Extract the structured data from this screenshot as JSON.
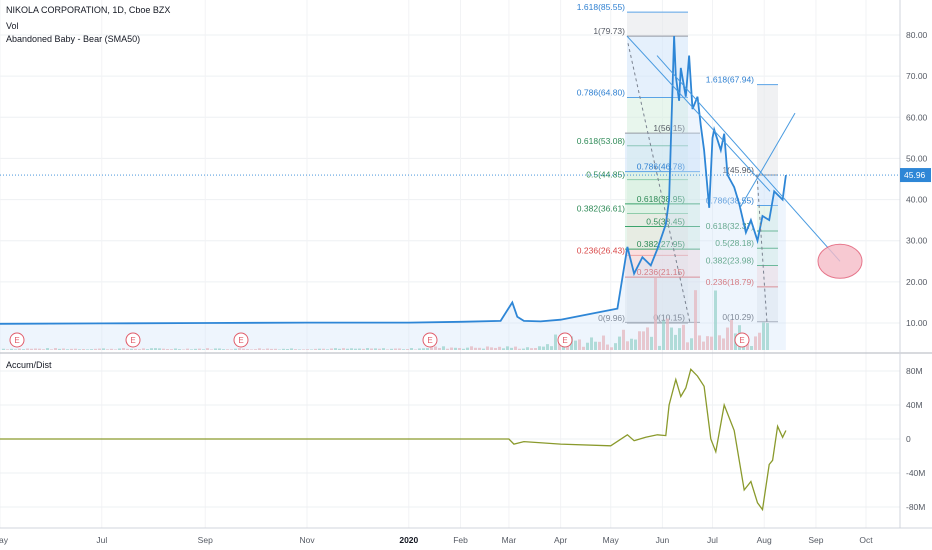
{
  "legend": {
    "symbol": "NIKOLA CORPORATION, 1D, Cboe BZX",
    "vol": "Vol",
    "pattern": "Abandoned Baby - Bear (SMA50)",
    "indicator": "Accum/Dist"
  },
  "colors": {
    "price_line": "#2e86d6",
    "accum_line": "#8a9a2c",
    "fib_blue": "#cfe3fa",
    "fib_green": "#d6efdf",
    "fib_red": "#fad7d7",
    "vol_up": "#7fc9b4",
    "vol_down": "#f0a2a2",
    "earnings": "#e05c6a",
    "last_price_bg": "#2e86d6"
  },
  "chart_data": [
    {
      "type": "line",
      "panel": "price",
      "last_price": "45.96",
      "y_ticks": [
        "10.00",
        "20.00",
        "30.00",
        "40.00",
        "50.00",
        "60.00",
        "70.00",
        "80.00"
      ],
      "ylim": [
        5,
        90
      ],
      "x_labels": [
        "May",
        "Jul",
        "Sep",
        "Nov",
        "2020",
        "Feb",
        "Mar",
        "Apr",
        "May",
        "Jun",
        "Jul",
        "Aug",
        "Sep",
        "Oct"
      ],
      "series": [
        {
          "x": [
            "2019-05-01",
            "2019-07-01",
            "2019-09-01",
            "2019-11-01",
            "2020-01-01",
            "2020-02-01",
            "2020-02-25",
            "2020-03-03",
            "2020-03-06",
            "2020-03-10",
            "2020-03-20",
            "2020-04-01",
            "2020-04-20",
            "2020-05-05",
            "2020-05-11",
            "2020-05-15",
            "2020-05-20",
            "2020-05-25",
            "2020-05-29",
            "2020-06-03",
            "2020-06-05",
            "2020-06-08",
            "2020-06-09",
            "2020-06-11",
            "2020-06-12",
            "2020-06-15",
            "2020-06-17",
            "2020-06-19",
            "2020-06-22",
            "2020-06-24",
            "2020-06-26",
            "2020-06-29",
            "2020-07-01",
            "2020-07-02",
            "2020-07-06",
            "2020-07-08",
            "2020-07-10",
            "2020-07-14",
            "2020-07-17",
            "2020-07-21",
            "2020-07-24",
            "2020-07-28",
            "2020-07-31",
            "2020-08-04",
            "2020-08-07",
            "2020-08-12",
            "2020-08-14"
          ],
          "values": [
            9.8,
            9.9,
            10.0,
            10.1,
            10.1,
            10.3,
            10.5,
            15.0,
            11.5,
            10.5,
            10.4,
            10.8,
            12.3,
            13.5,
            28.5,
            22.0,
            26.0,
            24.0,
            28.0,
            34.0,
            40.0,
            79.73,
            70.0,
            64.0,
            72.0,
            65.0,
            75.0,
            62.0,
            65.0,
            58.0,
            52.0,
            38.0,
            55.0,
            57.0,
            52.0,
            56.0,
            46.0,
            43.0,
            39.0,
            32.0,
            35.0,
            30.0,
            36.0,
            35.0,
            42.0,
            40.0,
            45.96
          ]
        }
      ],
      "fib_retracements": [
        {
          "name": "",
          "levels": [
            {
              "label": "1.618(85.55)",
              "value": 85.55,
              "color": "blue"
            },
            {
              "label": "1(79.73)",
              "value": 79.73,
              "color": "gray"
            },
            {
              "label": "0.786(64.80)",
              "value": 64.8,
              "color": "blue"
            },
            {
              "label": "0.618(53.08)",
              "value": 53.08,
              "color": "green"
            },
            {
              "label": "0.5(44.85)",
              "value": 44.85,
              "color": "green"
            },
            {
              "label": "0.382(36.61)",
              "value": 36.61,
              "color": "green"
            },
            {
              "label": "0.236(26.43)",
              "value": 26.43,
              "color": "red"
            },
            {
              "label": "0(9.96)",
              "value": 9.96,
              "color": "gray"
            }
          ]
        },
        {
          "name": "",
          "levels": [
            {
              "label": "1(56.15)",
              "value": 56.15,
              "color": "gray"
            },
            {
              "label": "0.786(46.78)",
              "value": 46.78,
              "color": "blue"
            },
            {
              "label": "0.618(38.95)",
              "value": 38.95,
              "color": "green"
            },
            {
              "label": "0.5(33.45)",
              "value": 33.45,
              "color": "green"
            },
            {
              "label": "0.382(27.95)",
              "value": 27.95,
              "color": "green"
            },
            {
              "label": "0.236(21.15)",
              "value": 21.15,
              "color": "red"
            },
            {
              "label": "0(10.15)",
              "value": 10.15,
              "color": "gray"
            }
          ]
        },
        {
          "name": "",
          "levels": [
            {
              "label": "1.618(67.94)",
              "value": 67.94,
              "color": "blue"
            },
            {
              "label": "1(45.96)",
              "value": 45.96,
              "color": "gray"
            },
            {
              "label": "0.786(38.55)",
              "value": 38.55,
              "color": "blue"
            },
            {
              "label": "0.618(32.37)",
              "value": 32.37,
              "color": "green"
            },
            {
              "label": "0.5(28.18)",
              "value": 28.18,
              "color": "green"
            },
            {
              "label": "0.382(23.98)",
              "value": 23.98,
              "color": "green"
            },
            {
              "label": "0.236(18.79)",
              "value": 18.79,
              "color": "red"
            },
            {
              "label": "0(10.29)",
              "value": 10.29,
              "color": "gray"
            }
          ]
        }
      ],
      "earnings_markers": [
        "E",
        "E",
        "E",
        "E",
        "E",
        "E"
      ]
    },
    {
      "type": "line",
      "panel": "indicator",
      "y_ticks": [
        "80M",
        "40M",
        "0",
        "-40M",
        "-80M"
      ],
      "ylim": [
        -90,
        90
      ],
      "series": [
        {
          "x": [
            "2019-05-01",
            "2019-09-01",
            "2020-01-01",
            "2020-03-01",
            "2020-03-04",
            "2020-03-10",
            "2020-04-01",
            "2020-05-01",
            "2020-05-11",
            "2020-05-15",
            "2020-05-22",
            "2020-05-29",
            "2020-06-03",
            "2020-06-05",
            "2020-06-09",
            "2020-06-12",
            "2020-06-15",
            "2020-06-18",
            "2020-06-22",
            "2020-06-26",
            "2020-06-30",
            "2020-07-03",
            "2020-07-08",
            "2020-07-14",
            "2020-07-20",
            "2020-07-24",
            "2020-07-28",
            "2020-07-31",
            "2020-08-04",
            "2020-08-06",
            "2020-08-09",
            "2020-08-12",
            "2020-08-14"
          ],
          "values": [
            0,
            0,
            0,
            0,
            -6,
            -3,
            -6,
            -8,
            5,
            -2,
            2,
            5,
            4,
            40,
            70,
            50,
            60,
            82,
            74,
            62,
            0,
            -15,
            40,
            10,
            -60,
            -50,
            -75,
            -83,
            -30,
            -25,
            15,
            2,
            10
          ]
        }
      ]
    }
  ]
}
